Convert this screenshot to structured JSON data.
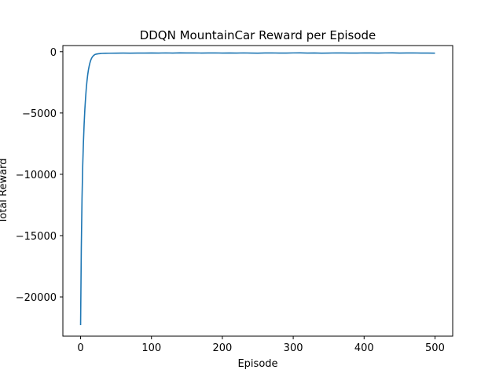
{
  "chart_data": {
    "type": "line",
    "title": "DDQN MountainCar Reward per Episode",
    "xlabel": "Episode",
    "ylabel": "Total Reward",
    "xlim": [
      -25,
      525
    ],
    "ylim": [
      -23200,
      500
    ],
    "xticks": [
      0,
      100,
      200,
      300,
      400,
      500
    ],
    "yticks": [
      0,
      -5000,
      -10000,
      -15000,
      -20000
    ],
    "ytick_labels": [
      "0",
      "−5000",
      "−10000",
      "−15000",
      "−20000"
    ],
    "grid": false,
    "color": "#1f77b4",
    "series": [
      {
        "x": [
          0,
          1,
          2,
          3,
          4,
          5,
          6,
          7,
          8,
          9,
          10,
          11,
          12,
          13,
          14,
          15,
          16,
          17,
          18,
          19,
          20,
          22,
          25,
          28,
          30,
          35,
          40,
          50,
          60,
          70,
          80,
          90,
          100,
          110,
          120,
          130,
          140,
          150,
          160,
          170,
          180,
          190,
          200,
          210,
          220,
          230,
          240,
          250,
          260,
          270,
          280,
          290,
          300,
          310,
          320,
          330,
          340,
          350,
          360,
          370,
          380,
          390,
          400,
          410,
          420,
          430,
          440,
          450,
          460,
          470,
          480,
          490,
          500
        ],
        "y": [
          -22300,
          -16000,
          -12000,
          -9300,
          -7400,
          -5900,
          -4700,
          -3800,
          -3000,
          -2400,
          -1900,
          -1500,
          -1200,
          -950,
          -750,
          -600,
          -480,
          -400,
          -330,
          -280,
          -240,
          -200,
          -170,
          -150,
          -140,
          -130,
          -125,
          -120,
          -115,
          -120,
          -110,
          -115,
          -105,
          -110,
          -100,
          -110,
          -95,
          -105,
          -100,
          -110,
          -105,
          -100,
          -110,
          -105,
          -115,
          -100,
          -110,
          -120,
          -105,
          -100,
          -110,
          -115,
          -100,
          -95,
          -110,
          -105,
          -120,
          -110,
          -100,
          -105,
          -115,
          -110,
          -100,
          -105,
          -110,
          -100,
          -95,
          -110,
          -105,
          -100,
          -115,
          -110,
          -120
        ]
      }
    ]
  }
}
